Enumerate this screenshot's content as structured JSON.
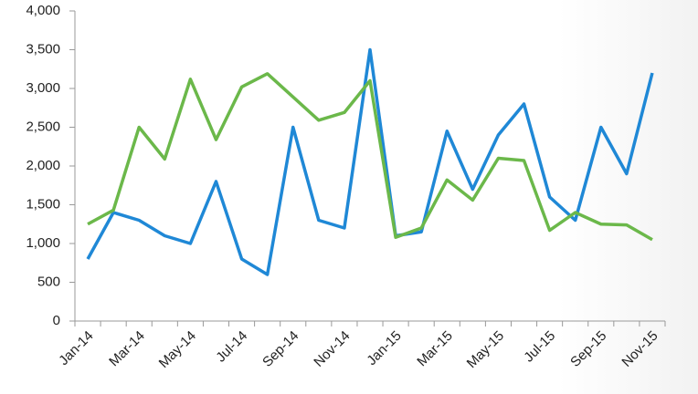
{
  "chart_data": {
    "type": "line",
    "categories": [
      "Jan-14",
      null,
      "Mar-14",
      null,
      "May-14",
      null,
      "Jul-14",
      null,
      "Sep-14",
      null,
      "Nov-14",
      null,
      "Jan-15",
      null,
      "Mar-15",
      null,
      "May-15",
      null,
      "Jul-15",
      null,
      "Sep-15",
      null,
      "Nov-15"
    ],
    "series": [
      {
        "color": "#1f88d6",
        "values": [
          800,
          1400,
          1300,
          1100,
          1000,
          1800,
          800,
          600,
          2500,
          1300,
          1200,
          3500,
          1100,
          1150,
          2450,
          1700,
          2400,
          2800,
          1600,
          1300,
          2500,
          1900,
          3200
        ]
      },
      {
        "color": "#6bb84a",
        "values": [
          1250,
          1430,
          2500,
          2090,
          3120,
          2340,
          3020,
          3190,
          2890,
          2590,
          2690,
          3100,
          1080,
          1200,
          1820,
          1560,
          2100,
          2070,
          1170,
          1400,
          1250,
          1240,
          1050
        ]
      }
    ],
    "ylim": [
      0,
      4000
    ],
    "yticks": [
      0,
      {
        "value": 500,
        "label": "500"
      },
      {
        "value": 1000,
        "label": "1,000"
      },
      {
        "value": 1500,
        "label": "1,500"
      },
      {
        "value": 2000,
        "label": "2,000"
      },
      {
        "value": 2500,
        "label": "2,500"
      },
      {
        "value": 3000,
        "label": "3,000"
      },
      {
        "value": 3500,
        "label": "3,500"
      },
      {
        "value": 4000,
        "label": "4,000"
      }
    ],
    "grid": false
  }
}
